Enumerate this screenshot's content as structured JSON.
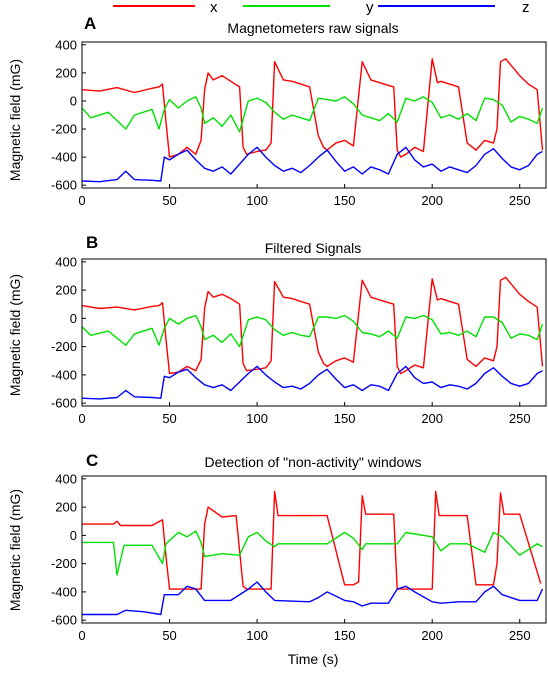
{
  "figure": {
    "legend": [
      {
        "label": "x",
        "color": "#ff0000"
      },
      {
        "label": "y",
        "color": "#00e000"
      },
      {
        "label": "z",
        "color": "#0000ff"
      }
    ],
    "xlabel": "Time (s)"
  },
  "chart_data": [
    {
      "type": "line",
      "panel_label": "A",
      "title": "Magnetometers raw signals",
      "xlabel": "",
      "ylabel": "Magnetic field (mG)",
      "xlim": [
        0,
        265
      ],
      "ylim": [
        -620,
        420
      ],
      "xticks": [
        0,
        50,
        100,
        150,
        200,
        250
      ],
      "yticks": [
        -600,
        -400,
        -200,
        0,
        200,
        400
      ],
      "series": [
        {
          "name": "x",
          "color": "#ff0000",
          "x": [
            0,
            10,
            20,
            30,
            40,
            44,
            46,
            48,
            50,
            55,
            60,
            65,
            68,
            70,
            72,
            75,
            80,
            85,
            90,
            92,
            94,
            100,
            105,
            108,
            110,
            115,
            120,
            125,
            130,
            135,
            138,
            140,
            145,
            150,
            155,
            160,
            165,
            170,
            178,
            180,
            182,
            185,
            190,
            195,
            200,
            203,
            205,
            210,
            215,
            220,
            225,
            230,
            235,
            237,
            239,
            242,
            250,
            255,
            260,
            263
          ],
          "y": [
            80,
            70,
            95,
            60,
            90,
            100,
            120,
            -150,
            -400,
            -380,
            -330,
            -380,
            -280,
            80,
            200,
            150,
            180,
            140,
            100,
            -330,
            -380,
            -360,
            -350,
            -300,
            280,
            150,
            140,
            120,
            100,
            -250,
            -330,
            -350,
            -300,
            -280,
            -320,
            280,
            150,
            130,
            100,
            -350,
            -400,
            -380,
            -330,
            -360,
            300,
            130,
            140,
            120,
            100,
            -300,
            -350,
            -280,
            -300,
            -200,
            280,
            300,
            180,
            120,
            80,
            -350
          ]
        },
        {
          "name": "y",
          "color": "#00e000",
          "x": [
            0,
            5,
            15,
            25,
            30,
            40,
            44,
            47,
            50,
            55,
            60,
            65,
            68,
            70,
            75,
            80,
            85,
            90,
            95,
            100,
            105,
            110,
            115,
            120,
            125,
            130,
            135,
            140,
            145,
            150,
            155,
            160,
            165,
            170,
            175,
            180,
            185,
            190,
            195,
            200,
            205,
            210,
            215,
            220,
            225,
            230,
            235,
            240,
            245,
            250,
            255,
            260,
            263
          ],
          "y": [
            -50,
            -120,
            -80,
            -200,
            -100,
            -60,
            -200,
            -60,
            10,
            -50,
            0,
            30,
            -50,
            -160,
            -120,
            -180,
            -100,
            -220,
            0,
            20,
            -10,
            -80,
            -130,
            -100,
            -120,
            -140,
            20,
            10,
            0,
            30,
            -20,
            -100,
            -120,
            -140,
            -90,
            -150,
            20,
            0,
            30,
            -10,
            -120,
            -100,
            -130,
            -90,
            -140,
            20,
            10,
            -30,
            -150,
            -110,
            -130,
            -160,
            -50
          ]
        },
        {
          "name": "z",
          "color": "#0000ff",
          "x": [
            0,
            10,
            20,
            25,
            30,
            40,
            45,
            47,
            50,
            55,
            60,
            65,
            70,
            75,
            80,
            85,
            90,
            95,
            100,
            105,
            110,
            115,
            120,
            125,
            130,
            135,
            140,
            145,
            150,
            155,
            160,
            165,
            170,
            175,
            180,
            185,
            190,
            195,
            200,
            205,
            210,
            215,
            220,
            225,
            230,
            235,
            240,
            245,
            250,
            255,
            260,
            263
          ],
          "y": [
            -570,
            -575,
            -560,
            -500,
            -560,
            -565,
            -570,
            -400,
            -420,
            -380,
            -350,
            -420,
            -480,
            -500,
            -470,
            -520,
            -450,
            -380,
            -330,
            -400,
            -460,
            -500,
            -480,
            -510,
            -460,
            -400,
            -350,
            -430,
            -500,
            -470,
            -520,
            -470,
            -490,
            -520,
            -380,
            -330,
            -420,
            -470,
            -450,
            -500,
            -470,
            -490,
            -510,
            -460,
            -380,
            -340,
            -410,
            -470,
            -490,
            -460,
            -380,
            -360
          ]
        }
      ]
    },
    {
      "type": "line",
      "panel_label": "B",
      "title": "Filtered Signals",
      "xlabel": "",
      "ylabel": "Magnetic field (mG)",
      "xlim": [
        0,
        265
      ],
      "ylim": [
        -620,
        420
      ],
      "xticks": [
        0,
        50,
        100,
        150,
        200,
        250
      ],
      "yticks": [
        -600,
        -400,
        -200,
        0,
        200,
        400
      ],
      "series": [
        {
          "name": "x",
          "color": "#ff0000",
          "x": [
            0,
            10,
            20,
            30,
            40,
            44,
            46,
            48,
            50,
            55,
            60,
            65,
            68,
            70,
            72,
            75,
            80,
            85,
            90,
            92,
            94,
            100,
            105,
            108,
            110,
            115,
            120,
            125,
            130,
            135,
            138,
            140,
            145,
            150,
            155,
            160,
            165,
            170,
            178,
            180,
            182,
            185,
            190,
            195,
            200,
            203,
            205,
            210,
            215,
            220,
            225,
            230,
            235,
            237,
            239,
            242,
            250,
            255,
            260,
            263
          ],
          "y": [
            90,
            70,
            80,
            60,
            85,
            90,
            110,
            -150,
            -390,
            -380,
            -340,
            -370,
            -290,
            70,
            190,
            150,
            170,
            140,
            100,
            -320,
            -370,
            -360,
            -350,
            -300,
            260,
            150,
            140,
            120,
            100,
            -240,
            -320,
            -340,
            -300,
            -280,
            -310,
            270,
            150,
            130,
            100,
            -340,
            -390,
            -370,
            -330,
            -350,
            280,
            130,
            140,
            120,
            100,
            -290,
            -340,
            -280,
            -300,
            -200,
            270,
            290,
            170,
            120,
            80,
            -340
          ]
        },
        {
          "name": "y",
          "color": "#00e000",
          "x": [
            0,
            5,
            15,
            25,
            30,
            40,
            44,
            47,
            50,
            55,
            60,
            65,
            68,
            70,
            75,
            80,
            85,
            90,
            95,
            100,
            105,
            110,
            115,
            120,
            125,
            130,
            135,
            140,
            145,
            150,
            155,
            160,
            165,
            170,
            175,
            180,
            185,
            190,
            195,
            200,
            205,
            210,
            215,
            220,
            225,
            230,
            235,
            240,
            245,
            250,
            255,
            260,
            263
          ],
          "y": [
            -60,
            -120,
            -90,
            -190,
            -110,
            -70,
            -190,
            -70,
            0,
            -40,
            0,
            20,
            -60,
            -150,
            -120,
            -170,
            -110,
            -200,
            -10,
            10,
            -10,
            -80,
            -120,
            -100,
            -120,
            -130,
            10,
            10,
            0,
            20,
            -20,
            -100,
            -110,
            -130,
            -90,
            -140,
            10,
            0,
            20,
            -10,
            -110,
            -100,
            -120,
            -90,
            -130,
            10,
            10,
            -30,
            -140,
            -110,
            -120,
            -150,
            -40
          ]
        },
        {
          "name": "z",
          "color": "#0000ff",
          "x": [
            0,
            10,
            20,
            25,
            30,
            40,
            45,
            47,
            50,
            55,
            60,
            65,
            70,
            75,
            80,
            85,
            90,
            95,
            100,
            105,
            110,
            115,
            120,
            125,
            130,
            135,
            140,
            145,
            150,
            155,
            160,
            165,
            170,
            175,
            180,
            185,
            190,
            195,
            200,
            205,
            210,
            215,
            220,
            225,
            230,
            235,
            240,
            245,
            250,
            255,
            260,
            263
          ],
          "y": [
            -565,
            -570,
            -560,
            -510,
            -555,
            -560,
            -565,
            -410,
            -420,
            -380,
            -360,
            -420,
            -470,
            -490,
            -470,
            -510,
            -450,
            -390,
            -340,
            -400,
            -450,
            -490,
            -480,
            -500,
            -460,
            -400,
            -360,
            -430,
            -490,
            -470,
            -510,
            -470,
            -480,
            -510,
            -390,
            -340,
            -420,
            -460,
            -450,
            -490,
            -470,
            -480,
            -500,
            -460,
            -390,
            -350,
            -410,
            -460,
            -480,
            -460,
            -390,
            -370
          ]
        }
      ]
    },
    {
      "type": "line",
      "panel_label": "C",
      "title": "Detection of \"non-activity\" windows",
      "xlabel": "Time (s)",
      "ylabel": "Magnetic field (mG)",
      "xlim": [
        0,
        265
      ],
      "ylim": [
        -620,
        420
      ],
      "xticks": [
        0,
        50,
        100,
        150,
        200,
        250
      ],
      "yticks": [
        -600,
        -400,
        -200,
        0,
        200,
        400
      ],
      "series": [
        {
          "name": "x",
          "color": "#ff0000",
          "x": [
            0,
            18,
            20,
            22,
            40,
            46,
            48,
            50,
            68,
            70,
            72,
            80,
            88,
            92,
            94,
            108,
            110,
            112,
            130,
            135,
            140,
            150,
            155,
            158,
            160,
            162,
            178,
            180,
            182,
            200,
            202,
            204,
            215,
            220,
            225,
            235,
            237,
            239,
            241,
            250,
            262
          ],
          "y": [
            80,
            80,
            100,
            70,
            70,
            110,
            -150,
            -380,
            -380,
            80,
            200,
            130,
            140,
            -360,
            -380,
            -380,
            310,
            140,
            140,
            140,
            140,
            -350,
            -350,
            -330,
            280,
            150,
            150,
            -380,
            -380,
            -380,
            310,
            140,
            140,
            140,
            -350,
            -350,
            -200,
            300,
            150,
            150,
            -340
          ]
        },
        {
          "name": "y",
          "color": "#00e000",
          "x": [
            0,
            18,
            20,
            24,
            26,
            40,
            46,
            48,
            55,
            60,
            65,
            68,
            70,
            80,
            90,
            95,
            100,
            105,
            110,
            112,
            130,
            140,
            150,
            155,
            160,
            162,
            180,
            185,
            190,
            200,
            205,
            210,
            220,
            230,
            235,
            240,
            250,
            260,
            263
          ],
          "y": [
            -50,
            -50,
            -280,
            -70,
            -70,
            -70,
            -200,
            -60,
            20,
            -10,
            30,
            -50,
            -150,
            -130,
            -140,
            -10,
            20,
            -40,
            -80,
            -60,
            -60,
            -60,
            20,
            -20,
            -100,
            -60,
            -60,
            20,
            10,
            -10,
            -110,
            -60,
            -60,
            -120,
            20,
            -10,
            -140,
            -60,
            -80
          ]
        },
        {
          "name": "z",
          "color": "#0000ff",
          "x": [
            0,
            20,
            25,
            35,
            45,
            47,
            55,
            60,
            65,
            70,
            85,
            95,
            100,
            105,
            110,
            130,
            135,
            140,
            150,
            155,
            160,
            165,
            175,
            180,
            185,
            190,
            200,
            205,
            215,
            225,
            230,
            235,
            240,
            250,
            260,
            263
          ],
          "y": [
            -560,
            -560,
            -530,
            -540,
            -560,
            -420,
            -420,
            -360,
            -380,
            -460,
            -460,
            -380,
            -330,
            -400,
            -460,
            -470,
            -440,
            -400,
            -460,
            -470,
            -500,
            -480,
            -480,
            -380,
            -360,
            -400,
            -470,
            -480,
            -470,
            -470,
            -400,
            -360,
            -420,
            -460,
            -460,
            -380
          ]
        }
      ]
    }
  ]
}
